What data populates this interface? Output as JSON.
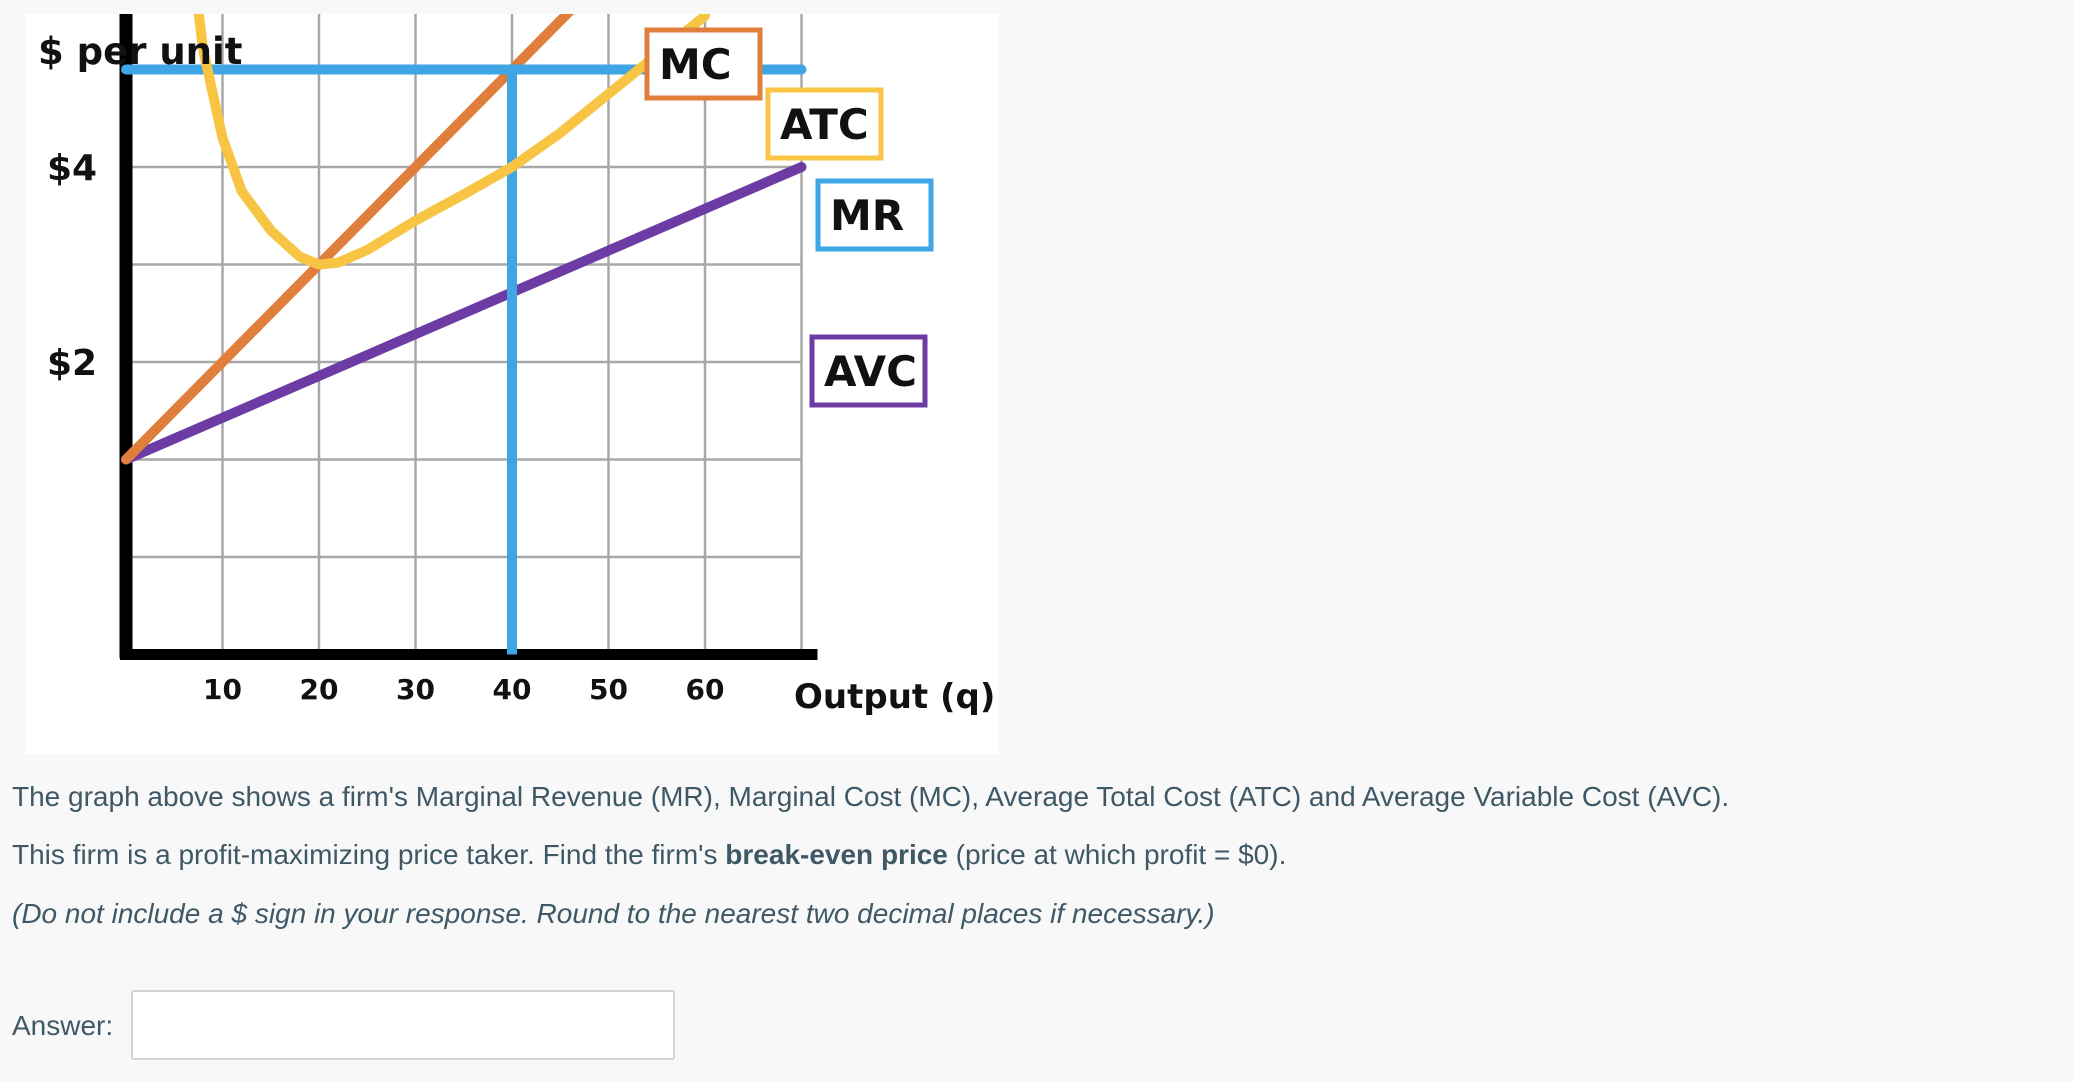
{
  "chart_data": {
    "type": "line",
    "ylabel": "$ per unit",
    "xlabel": "Output (q)",
    "y_tick_labels": [
      "$4",
      "$2"
    ],
    "y_ticks": [
      4,
      2
    ],
    "x_ticks": [
      10,
      20,
      30,
      40,
      50,
      60
    ],
    "xlim": [
      0,
      70
    ],
    "ylim": [
      0,
      6
    ],
    "grid": true,
    "series": [
      {
        "name": "MC",
        "color": "#e07e3c",
        "x": [
          0,
          50
        ],
        "y": [
          1,
          6
        ]
      },
      {
        "name": "ATC",
        "color": "#f7c444",
        "x": [
          7,
          8,
          10,
          12,
          15,
          18,
          20,
          22,
          25,
          30,
          35,
          40,
          45,
          50,
          55,
          60
        ],
        "y": [
          6,
          5.2,
          4.3,
          3.75,
          3.35,
          3.08,
          3.0,
          3.02,
          3.15,
          3.45,
          3.72,
          4.0,
          4.35,
          4.75,
          5.15,
          5.55
        ]
      },
      {
        "name": "MR",
        "color": "#3ea6e4",
        "x": [
          0,
          70
        ],
        "y": [
          5,
          5
        ]
      },
      {
        "name": "AVC",
        "color": "#6c3ca4",
        "x": [
          0,
          70
        ],
        "y": [
          1,
          4
        ]
      }
    ],
    "vertical_line": {
      "x": 40,
      "color": "#3ea6e4"
    }
  },
  "question": {
    "line1": "The graph above shows a firm's Marginal Revenue (MR), Marginal Cost (MC), Average Total Cost (ATC) and Average Variable Cost (AVC).",
    "line2_before": "This firm is a profit-maximizing price taker. Find the firm's ",
    "line2_bold": "break-even price",
    "line2_after": " (price at which profit = $0).",
    "line3": "(Do not include a $ sign in your response. Round to the nearest two decimal places if necessary.)"
  },
  "answer": {
    "label": "Answer:",
    "value": "",
    "placeholder": ""
  }
}
